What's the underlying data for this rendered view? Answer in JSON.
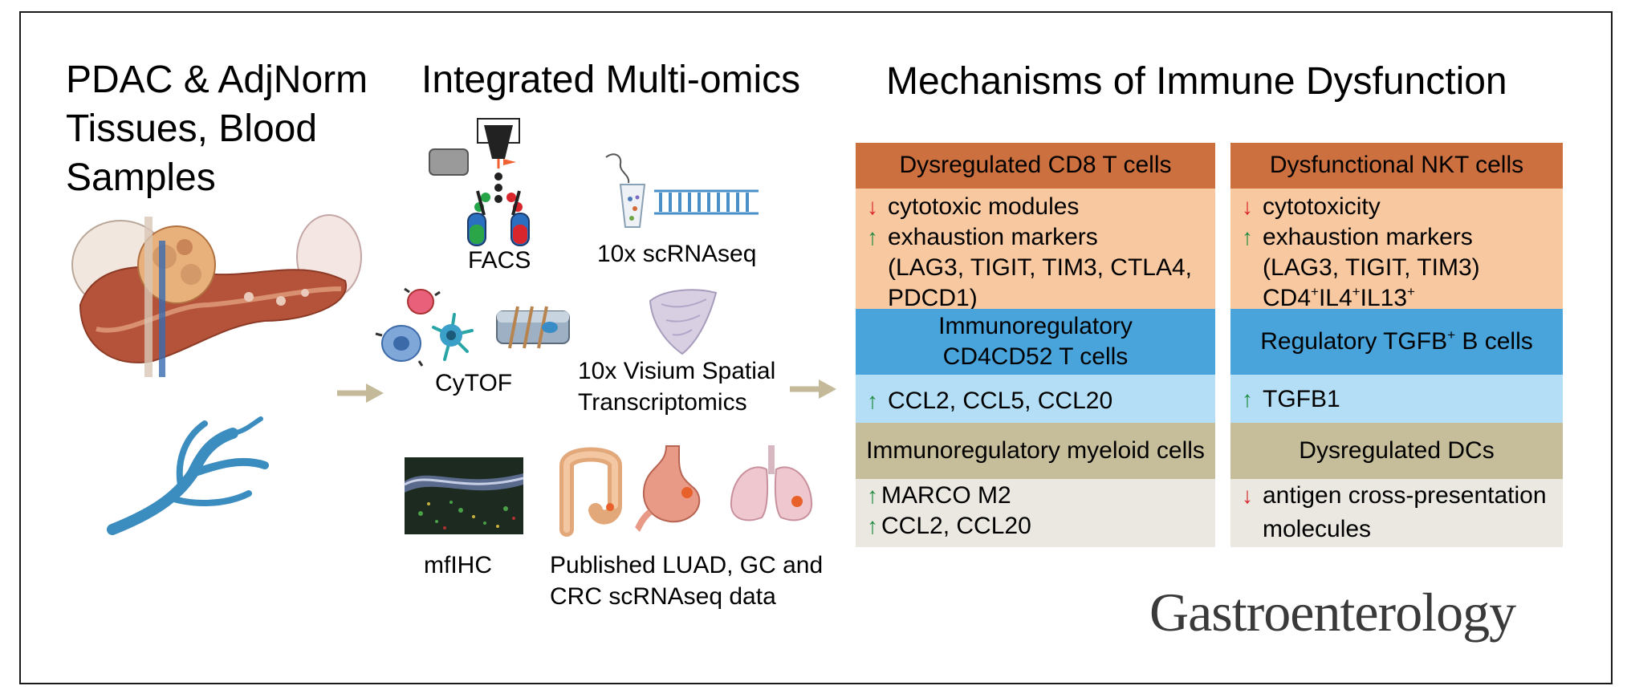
{
  "titles": {
    "col1": [
      "PDAC & AdjNorm",
      "Tissues, Blood",
      "Samples"
    ],
    "col2": "Integrated Multi-omics",
    "col3": "Mechanisms of Immune Dysfunction"
  },
  "methods": {
    "facs": "FACS",
    "scrnaseq": "10x scRNAseq",
    "cytof": "CyTOF",
    "visium": [
      "10x Visium Spatial",
      "Transcriptomics"
    ],
    "mfihc": "mfIHC",
    "published": [
      "Published LUAD, GC and",
      "CRC scRNAseq data"
    ]
  },
  "left_panel": {
    "cd8_header": "Dysregulated CD8 T cells",
    "cd8_items": [
      {
        "dir": "down",
        "text": "cytotoxic modules"
      },
      {
        "dir": "up",
        "text": "exhaustion markers"
      },
      {
        "dir": "",
        "text": "(LAG3, TIGIT, TIM3, CTLA4,"
      },
      {
        "dir": "",
        "text": "PDCD1)"
      }
    ],
    "cd4_header": [
      "Immunoregulatory",
      "CD4CD52 T cells"
    ],
    "cd4_items": [
      {
        "dir": "up",
        "text": "CCL2, CCL5, CCL20"
      }
    ],
    "myeloid_header": "Immunoregulatory myeloid cells",
    "myeloid_items": [
      {
        "dir": "up",
        "text": "MARCO M2"
      },
      {
        "dir": "up",
        "text": "CCL2, CCL20"
      }
    ]
  },
  "right_panel": {
    "nkt_header": "Dysfunctional NKT cells",
    "nkt_items": [
      {
        "dir": "down",
        "text": "cytotoxicity"
      },
      {
        "dir": "up",
        "text": "exhaustion markers"
      },
      {
        "dir": "",
        "text": "(LAG3, TIGIT, TIM3)"
      }
    ],
    "nkt_cd4": {
      "a": "CD4",
      "s1": "+",
      "b": "IL4",
      "s2": "+",
      "c": "IL13",
      "s3": "+"
    },
    "bcell_header": {
      "a": "Regulatory TGFB",
      "sup": "+",
      "b": " B cells"
    },
    "bcell_items": [
      {
        "dir": "up",
        "text": "TGFB1"
      }
    ],
    "dc_header": "Dysregulated DCs",
    "dc_items": [
      {
        "dir": "down",
        "text": "antigen cross-presentation"
      },
      {
        "dir": "",
        "text": "molecules"
      }
    ]
  },
  "arrows": {
    "up": "↑",
    "down": "↓"
  },
  "journal": "Gastroenterology",
  "colors": {
    "orange_dark": "#cc7040",
    "orange_light": "#f8c9a1",
    "blue_dark": "#49a4dc",
    "blue_light": "#b4def5",
    "khaki": "#c6bd9b",
    "grey_light": "#ebe8e1",
    "vessel": "#3b8cbf",
    "arrow": "#c4b998"
  }
}
